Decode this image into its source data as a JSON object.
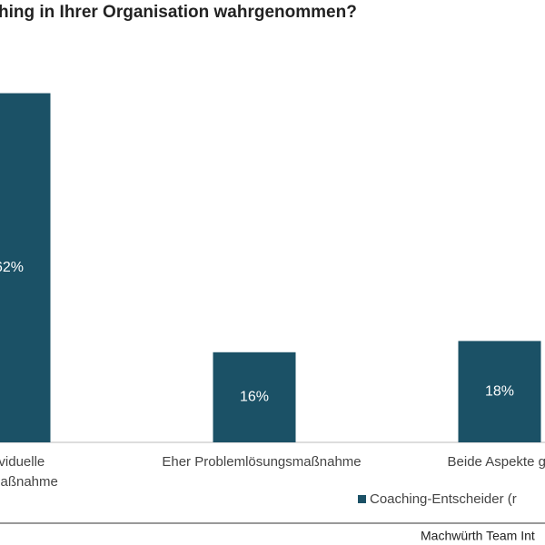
{
  "chart_data": {
    "type": "bar",
    "title": "hing in Ihrer Organisation wahrgenommen?",
    "categories": [
      [
        "dividuelle",
        "gsmaßnahme"
      ],
      [
        "Eher Problemlösungsmaßnahme"
      ],
      [
        "Beide Aspekte gleic"
      ]
    ],
    "series": [
      {
        "name": "Coaching-Entscheider (r",
        "color": "#1b5166",
        "values": [
          62,
          16,
          18
        ],
        "value_labels": [
          "62%",
          "16%",
          "18%"
        ]
      }
    ],
    "ylim": [
      0,
      70
    ],
    "footer": "Machwürth Team Int"
  }
}
